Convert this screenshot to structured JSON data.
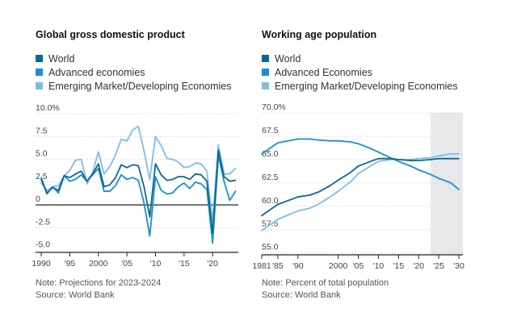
{
  "colors": {
    "world": "#0c6796",
    "advanced": "#1a91c9",
    "emerging": "#7fbde2",
    "axis": "#222222",
    "grid": "#d9d9d9",
    "shade": "#e8e8ea"
  },
  "chart_data": [
    {
      "type": "line",
      "title": "Global gross domestic product",
      "legend": [
        "World",
        "Advanced economies",
        "Emerging Market/Developing Economies"
      ],
      "y_tick_labels": [
        "10.0%",
        "7.5",
        "5.0",
        "2.5",
        "0",
        "-2.5",
        "-5.0"
      ],
      "y_ticks": [
        10,
        7.5,
        5,
        2.5,
        0,
        -2.5,
        -5
      ],
      "x_tick_labels": [
        "1990",
        "'95",
        "2000",
        "'05",
        "'10",
        "'15",
        "'20"
      ],
      "x_ticks": [
        1990,
        1995,
        2000,
        2005,
        2010,
        2015,
        2020
      ],
      "xlim": [
        1989,
        2024.5
      ],
      "ylim": [
        -5.2,
        10
      ],
      "x": [
        1990,
        1991,
        1992,
        1993,
        1994,
        1995,
        1996,
        1997,
        1998,
        1999,
        2000,
        2001,
        2002,
        2003,
        2004,
        2005,
        2006,
        2007,
        2008,
        2009,
        2010,
        2011,
        2012,
        2013,
        2014,
        2015,
        2016,
        2017,
        2018,
        2019,
        2020,
        2021,
        2022,
        2023,
        2024
      ],
      "series": [
        {
          "name": "World",
          "values": [
            2.8,
            1.3,
            1.9,
            1.6,
            3.2,
            3.0,
            3.4,
            3.7,
            2.6,
            3.4,
            4.5,
            2.0,
            2.2,
            3.0,
            4.4,
            4.1,
            4.4,
            4.3,
            2.0,
            -1.3,
            4.5,
            3.3,
            2.7,
            2.8,
            3.1,
            3.1,
            2.8,
            3.4,
            3.3,
            2.6,
            -3.1,
            6.0,
            3.1,
            2.6,
            2.7
          ]
        },
        {
          "name": "Advanced economies",
          "values": [
            3.0,
            1.2,
            2.0,
            1.3,
            3.2,
            2.6,
            2.8,
            3.3,
            2.6,
            3.3,
            4.0,
            1.5,
            1.5,
            2.1,
            3.3,
            2.8,
            3.0,
            2.7,
            0.2,
            -3.4,
            3.1,
            1.6,
            1.2,
            1.3,
            2.0,
            2.4,
            1.8,
            2.5,
            2.3,
            1.7,
            -4.2,
            5.4,
            2.6,
            0.5,
            1.5
          ]
        },
        {
          "name": "Emerging Market/Developing Economies",
          "values": [
            2.4,
            1.6,
            2.0,
            2.1,
            3.2,
            3.8,
            4.9,
            5.0,
            2.3,
            3.6,
            5.8,
            3.4,
            4.2,
            5.5,
            7.2,
            7.0,
            8.2,
            8.6,
            5.9,
            2.8,
            7.5,
            6.5,
            5.1,
            5.0,
            4.7,
            4.1,
            4.2,
            4.6,
            4.5,
            3.7,
            -1.8,
            6.6,
            3.4,
            3.4,
            4.0
          ]
        }
      ],
      "notes": [
        "Note: Projections for 2023-2024",
        "Source: World Bank"
      ]
    },
    {
      "type": "line",
      "title": "Working age population",
      "legend": [
        "World",
        "Advanced Economies",
        "Emerging Market/Developing Economies"
      ],
      "y_tick_labels": [
        "70.0%",
        "67.5",
        "65.0",
        "62.5",
        "60.0",
        "57.5",
        "55.0"
      ],
      "y_ticks": [
        70,
        67.5,
        65,
        62.5,
        60,
        57.5,
        55
      ],
      "x_tick_labels": [
        "1981",
        "'85",
        "'90",
        "2000",
        "'05",
        "'10",
        "'15",
        "'20",
        "'25",
        "'30"
      ],
      "x_ticks": [
        1981,
        1985,
        1990,
        2000,
        2005,
        2010,
        2015,
        2020,
        2025,
        2030
      ],
      "xlim": [
        1981,
        2031
      ],
      "ylim": [
        54.8,
        70
      ],
      "shade_from": 2023,
      "x": [
        1981,
        1985,
        1990,
        1993,
        1995,
        1998,
        2000,
        2003,
        2005,
        2008,
        2010,
        2013,
        2015,
        2018,
        2020,
        2023,
        2025,
        2028,
        2030
      ],
      "series": [
        {
          "name": "World",
          "values": [
            59.0,
            60.2,
            61.0,
            61.2,
            61.5,
            62.2,
            62.8,
            63.6,
            64.3,
            64.8,
            65.1,
            65.1,
            65.0,
            64.9,
            64.9,
            65.0,
            65.1,
            65.1,
            65.1
          ]
        },
        {
          "name": "Advanced Economies",
          "values": [
            65.6,
            66.8,
            67.2,
            67.2,
            67.1,
            67.0,
            67.0,
            66.9,
            66.7,
            66.2,
            65.8,
            65.2,
            64.8,
            64.3,
            63.9,
            63.4,
            63.0,
            62.5,
            61.8
          ]
        },
        {
          "name": "Emerging Market/Developing Economies",
          "values": [
            57.4,
            58.6,
            59.5,
            59.8,
            60.2,
            61.0,
            61.6,
            62.6,
            63.5,
            64.3,
            64.8,
            65.0,
            65.0,
            65.0,
            65.1,
            65.2,
            65.4,
            65.6,
            65.6
          ]
        }
      ],
      "notes": [
        "Note: Percent of total population",
        "Source: World Bank"
      ]
    }
  ]
}
